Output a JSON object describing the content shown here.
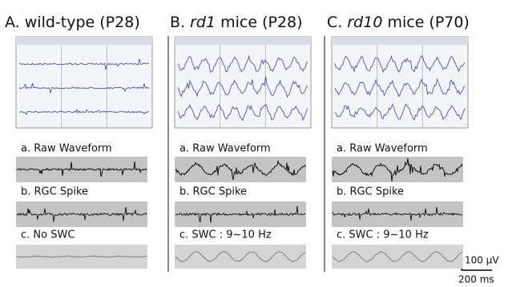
{
  "panels": [
    {
      "label": "A.",
      "strain": "wild-type",
      "age": "(P28)",
      "raw": "a. Raw Waveform",
      "spike": "b. RGC Spike",
      "swc": "c. No SWC"
    },
    {
      "label": "B.",
      "strain": "rd1",
      "age": "mice (P28)",
      "raw": "a. Raw Waveform",
      "spike": "b. RGC Spike",
      "swc": "c. SWC : 9~10 Hz"
    },
    {
      "label": "C.",
      "strain": "rd10",
      "age": "mice (P70)",
      "raw": "a. Raw Waveform",
      "spike": "b. RGC Spike",
      "swc": "c. SWC  : 9~10 Hz"
    }
  ],
  "scale_bar": {
    "amplitude": "100 µV",
    "time": "200 ms"
  }
}
